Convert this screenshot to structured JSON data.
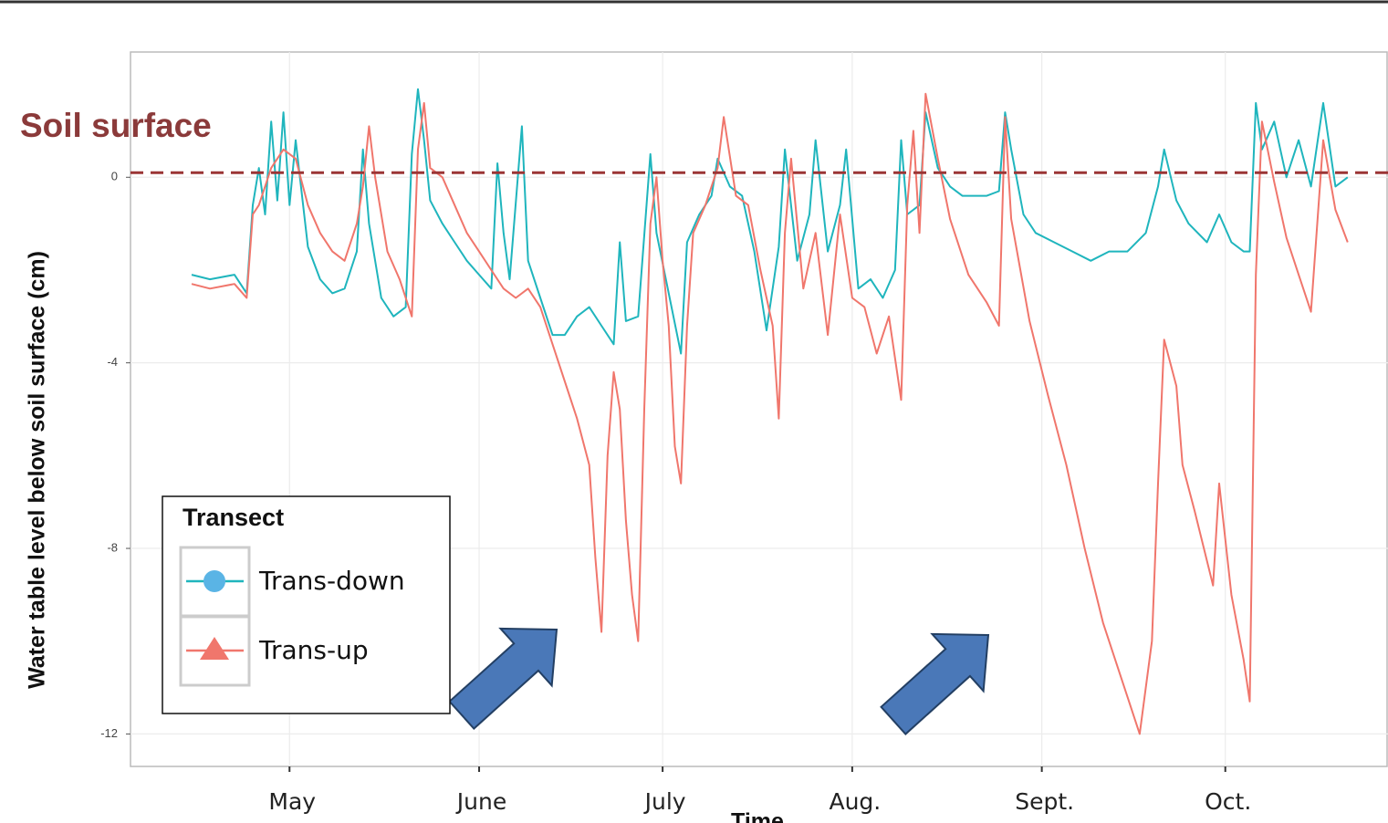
{
  "chart_data": {
    "type": "line",
    "annotation": "Soil surface",
    "reference_line": 0.1,
    "ylabel": "Water table level below soil surface (cm)",
    "xlabel": "Time",
    "legend_title": "Transect",
    "legend_position": "bottom-left",
    "grid": true,
    "xlim": [
      95,
      300.6
    ],
    "ylim": [
      -12.7,
      2.7
    ],
    "xticks": [
      {
        "value": 121,
        "label": "May"
      },
      {
        "value": 152,
        "label": "June"
      },
      {
        "value": 182,
        "label": "July"
      },
      {
        "value": 213,
        "label": "Aug."
      },
      {
        "value": 244,
        "label": "Sept."
      },
      {
        "value": 274,
        "label": "Oct."
      }
    ],
    "yticks": [
      0,
      -4,
      -8,
      -12
    ],
    "series": [
      {
        "name": "Trans-down",
        "color": "#1fb5bd",
        "x": [
          105,
          108,
          112,
          114,
          115,
          116,
          117,
          118,
          119,
          120,
          121,
          122,
          124,
          126,
          128,
          130,
          132,
          133,
          134,
          136,
          138,
          140,
          141,
          142,
          143,
          144,
          146,
          148,
          150,
          152,
          154,
          155,
          156,
          157,
          159,
          160,
          162,
          164,
          166,
          168,
          170,
          172,
          174,
          175,
          176,
          178,
          180,
          181,
          183,
          185,
          186,
          188,
          190,
          191,
          193,
          195,
          197,
          199,
          201,
          202,
          204,
          206,
          207,
          209,
          211,
          212,
          214,
          216,
          218,
          220,
          221,
          222,
          224,
          225,
          227,
          229,
          231,
          233,
          235,
          237,
          238,
          239,
          241,
          243,
          246,
          249,
          252,
          255,
          258,
          261,
          263,
          264,
          266,
          268,
          271,
          273,
          275,
          277,
          278,
          279,
          280,
          282,
          284,
          286,
          288,
          290,
          292,
          294
        ],
        "values": [
          -2.1,
          -2.2,
          -2.1,
          -2.5,
          -0.6,
          0.2,
          -0.8,
          1.2,
          -0.5,
          1.4,
          -0.6,
          0.8,
          -1.5,
          -2.2,
          -2.5,
          -2.4,
          -1.6,
          0.6,
          -1.0,
          -2.6,
          -3.0,
          -2.8,
          0.5,
          1.9,
          0.8,
          -0.5,
          -1.0,
          -1.4,
          -1.8,
          -2.1,
          -2.4,
          0.3,
          -1.2,
          -2.2,
          1.1,
          -1.8,
          -2.6,
          -3.4,
          -3.4,
          -3.0,
          -2.8,
          -3.2,
          -3.6,
          -1.4,
          -3.1,
          -3.0,
          0.5,
          -1.2,
          -2.5,
          -3.8,
          -1.4,
          -0.8,
          -0.4,
          0.4,
          -0.2,
          -0.4,
          -1.6,
          -3.3,
          -1.5,
          0.6,
          -1.8,
          -0.8,
          0.8,
          -1.6,
          -0.6,
          0.6,
          -2.4,
          -2.2,
          -2.6,
          -2.0,
          0.8,
          -0.8,
          -0.6,
          1.4,
          0.2,
          -0.2,
          -0.4,
          -0.4,
          -0.4,
          -0.3,
          1.4,
          0.6,
          -0.8,
          -1.2,
          -1.4,
          -1.6,
          -1.8,
          -1.6,
          -1.6,
          -1.2,
          -0.2,
          0.6,
          -0.5,
          -1.0,
          -1.4,
          -0.8,
          -1.4,
          -1.6,
          -1.6,
          1.6,
          0.6,
          1.2,
          0.0,
          0.8,
          -0.2,
          1.6,
          -0.2,
          0.0
        ]
      },
      {
        "name": "Trans-up",
        "color": "#f0766c",
        "x": [
          105,
          108,
          112,
          114,
          115,
          116,
          118,
          120,
          122,
          124,
          126,
          128,
          130,
          132,
          133,
          134,
          135,
          137,
          139,
          141,
          142,
          143,
          144,
          146,
          148,
          150,
          152,
          154,
          156,
          158,
          160,
          162,
          164,
          166,
          168,
          170,
          171,
          172,
          173,
          174,
          175,
          176,
          177,
          178,
          179,
          180,
          181,
          182,
          183,
          184,
          185,
          186,
          187,
          189,
          191,
          192,
          194,
          196,
          198,
          200,
          201,
          202,
          203,
          205,
          207,
          209,
          211,
          213,
          215,
          217,
          219,
          221,
          222,
          223,
          224,
          225,
          227,
          229,
          232,
          235,
          237,
          238,
          239,
          242,
          245,
          248,
          251,
          254,
          257,
          260,
          262,
          263,
          264,
          266,
          267,
          269,
          272,
          273,
          275,
          277,
          278,
          279,
          280,
          282,
          284,
          286,
          288,
          290,
          292,
          294
        ],
        "values": [
          -2.3,
          -2.4,
          -2.3,
          -2.6,
          -0.8,
          -0.6,
          0.2,
          0.6,
          0.4,
          -0.6,
          -1.2,
          -1.6,
          -1.8,
          -1.0,
          -0.2,
          1.1,
          0.0,
          -1.6,
          -2.2,
          -3.0,
          0.6,
          1.6,
          0.2,
          0.0,
          -0.6,
          -1.2,
          -1.6,
          -2.0,
          -2.4,
          -2.6,
          -2.4,
          -2.8,
          -3.6,
          -4.4,
          -5.2,
          -6.2,
          -8.2,
          -9.8,
          -6.0,
          -4.2,
          -5.0,
          -7.4,
          -9.0,
          -10.0,
          -5.0,
          -1.0,
          0.0,
          -1.8,
          -3.2,
          -5.8,
          -6.6,
          -3.2,
          -1.2,
          -0.6,
          0.2,
          1.3,
          -0.4,
          -0.6,
          -2.0,
          -3.2,
          -5.2,
          -1.2,
          0.4,
          -2.4,
          -1.2,
          -3.4,
          -0.8,
          -2.6,
          -2.8,
          -3.8,
          -3.0,
          -4.8,
          -0.6,
          1.0,
          -1.2,
          1.8,
          0.4,
          -0.9,
          -2.1,
          -2.7,
          -3.2,
          1.3,
          -0.9,
          -3.1,
          -4.7,
          -6.2,
          -8.0,
          -9.6,
          -10.8,
          -12.0,
          -10.0,
          -6.6,
          -3.5,
          -4.5,
          -6.2,
          -7.2,
          -8.8,
          -6.6,
          -9.0,
          -10.4,
          -11.3,
          -2.1,
          1.2,
          -0.1,
          -1.3,
          -2.1,
          -2.9,
          0.8,
          -0.7,
          -1.4
        ]
      }
    ]
  }
}
